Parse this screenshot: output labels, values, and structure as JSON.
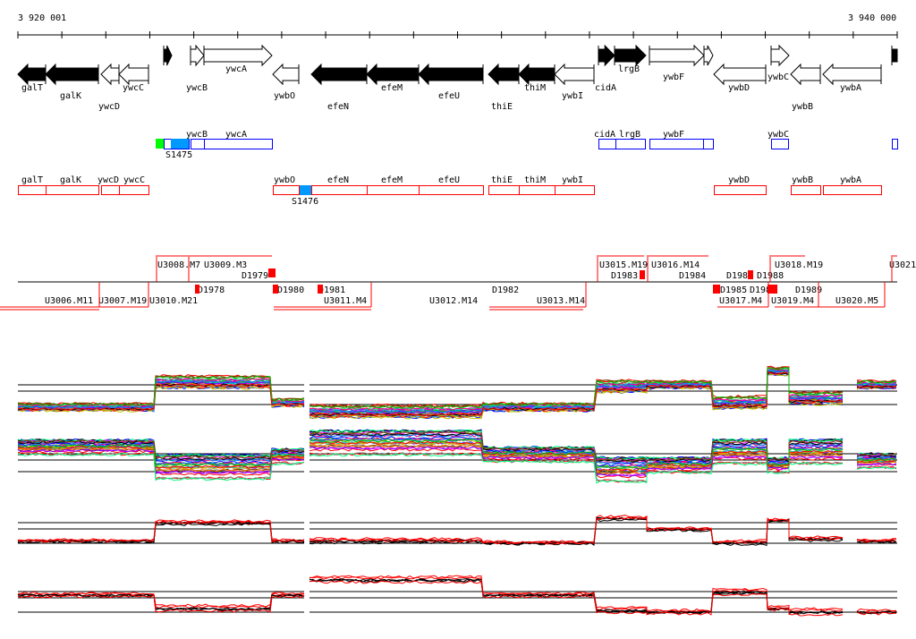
{
  "ruler": {
    "start_label": "3 920 001",
    "end_label": "3 940 000"
  },
  "genes": {
    "labels": [
      "galT",
      "galK",
      "ywcD",
      "ywcC",
      "ywcB",
      "ywcA",
      "ywbO",
      "efeN",
      "efeM",
      "efeU",
      "thiE",
      "thiM",
      "ywbI",
      "cidA",
      "lrgB",
      "ywbF",
      "ywbD",
      "ywbC",
      "ywbB",
      "ywbA"
    ]
  },
  "blue_track": {
    "labels": [
      "ywcB",
      "ywcA",
      "cidA",
      "lrgB",
      "ywbF",
      "ywbC"
    ],
    "site_label": "S1475"
  },
  "red_track": {
    "labels": [
      "galT",
      "galK",
      "ywcD",
      "ywcC",
      "ywbO",
      "efeN",
      "efeM",
      "efeU",
      "thiE",
      "thiM",
      "ywbI",
      "ywbD",
      "ywbB",
      "ywbA"
    ],
    "site_label": "S1476"
  },
  "segments": {
    "labels": [
      "U3008.M7",
      "U3009.M3",
      "D1979",
      "D1978",
      "U3006.M11",
      "U3007.M19",
      "U3010.M21",
      "D1980",
      "D1981",
      "U3011.M4",
      "U3012.M14",
      "D1982",
      "U3013.M14",
      "U3015.M19",
      "U3016.M14",
      "D1983",
      "D1984",
      "D1985",
      "D1986",
      "D1987",
      "D1988",
      "U3017.M4",
      "U3018.M19",
      "U3019.M4",
      "D1989",
      "U3020.M5",
      "U3021"
    ]
  },
  "colors": {
    "plus_gene": "#000000",
    "blue_box": "#0000ff",
    "red_box": "#ff0000",
    "site_fill": "#0099ff",
    "green_fill": "#00ff00"
  }
}
